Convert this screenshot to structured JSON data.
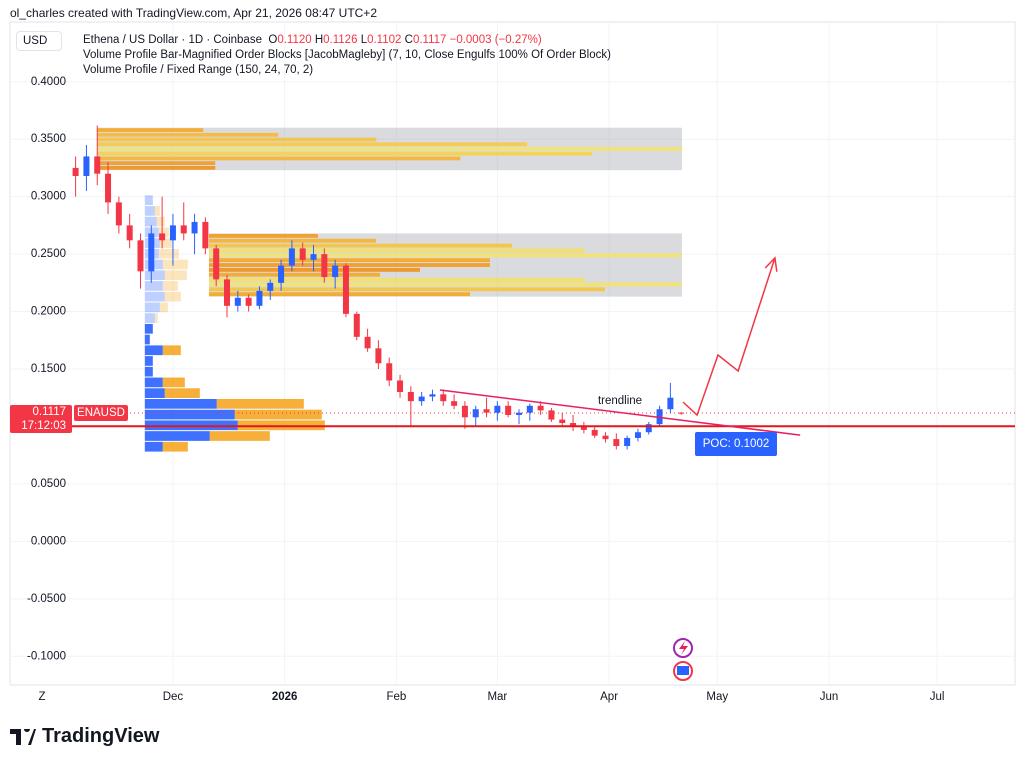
{
  "header": {
    "credit": "ol_charles created with TradingView.com, Apr 21, 2026 08:47 UTC+2",
    "currency": "USD",
    "symbol": "Ethena / US Dollar · 1D · Coinbase",
    "ohlc": [
      {
        "key": "O",
        "value": "0.1120"
      },
      {
        "key": "H",
        "value": "0.1126"
      },
      {
        "key": "L",
        "value": "0.1102"
      },
      {
        "key": "C",
        "value": "0.1117"
      }
    ],
    "change": "−0.0003 (−0.27%)",
    "indicators": [
      "Volume Profile Bar-Magnified Order Blocks [JacobMagleby] (7, 10, Close Engulfs 100% Of Order Block)",
      "Volume Profile / Fixed Range (150, 24, 70, 2)"
    ]
  },
  "footer": {
    "brand": "TradingView"
  },
  "chart_data": {
    "type": "candlestick",
    "xlim": [
      -45.2,
      233.6
    ],
    "ylim": [
      -0.125,
      0.452
    ],
    "xticks": [
      {
        "value": 0,
        "label": "Dec"
      },
      {
        "value": 31,
        "label": "2026"
      },
      {
        "value": 62,
        "label": "Feb"
      },
      {
        "value": 90,
        "label": "Mar"
      },
      {
        "value": 121,
        "label": "Apr"
      },
      {
        "value": 151,
        "label": "May"
      },
      {
        "value": 182,
        "label": "Jun"
      },
      {
        "value": 212,
        "label": "Jul"
      }
    ],
    "yticks": [
      {
        "value": 0.4,
        "label": "0.4000"
      },
      {
        "value": 0.35,
        "label": "0.3500"
      },
      {
        "value": 0.3,
        "label": "0.3000"
      },
      {
        "value": 0.25,
        "label": "0.2500"
      },
      {
        "value": 0.2,
        "label": "0.2000"
      },
      {
        "value": 0.15,
        "label": "0.1500"
      },
      {
        "value": 0.1,
        "label": "0.1000"
      },
      {
        "value": 0.05,
        "label": "0.0500"
      },
      {
        "value": 0,
        "label": "0.0000"
      },
      {
        "value": -0.05,
        "label": "-0.0500"
      },
      {
        "value": -0.1,
        "label": "-0.1000"
      }
    ],
    "grid": true,
    "timezone_button": "Z",
    "up_color": "#2962ff",
    "down_color": "#f23645",
    "candles": {
      "x": [
        -27,
        -24,
        -21,
        -18,
        -15,
        -12,
        -9,
        -6,
        -3,
        0,
        3,
        6,
        9,
        12,
        15,
        18,
        21,
        24,
        27,
        30,
        33,
        36,
        39,
        42,
        45,
        48,
        51,
        54,
        57,
        60,
        63,
        66,
        69,
        72,
        75,
        78,
        81,
        84,
        87,
        90,
        93,
        96,
        99,
        102,
        105,
        108,
        111,
        114,
        117,
        120,
        123,
        126,
        129,
        132,
        135,
        138,
        141
      ],
      "open": [
        0.325,
        0.318,
        0.335,
        0.32,
        0.295,
        0.275,
        0.262,
        0.235,
        0.268,
        0.262,
        0.275,
        0.268,
        0.278,
        0.255,
        0.228,
        0.205,
        0.212,
        0.205,
        0.218,
        0.225,
        0.24,
        0.255,
        0.245,
        0.25,
        0.23,
        0.24,
        0.198,
        0.178,
        0.168,
        0.155,
        0.14,
        0.13,
        0.122,
        0.126,
        0.128,
        0.122,
        0.118,
        0.108,
        0.115,
        0.112,
        0.118,
        0.11,
        0.112,
        0.118,
        0.114,
        0.106,
        0.103,
        0.1,
        0.097,
        0.092,
        0.089,
        0.083,
        0.09,
        0.095,
        0.102,
        0.115,
        0.112
      ],
      "high": [
        0.335,
        0.345,
        0.362,
        0.33,
        0.3,
        0.285,
        0.268,
        0.275,
        0.3,
        0.285,
        0.295,
        0.285,
        0.282,
        0.258,
        0.232,
        0.218,
        0.215,
        0.222,
        0.228,
        0.245,
        0.262,
        0.26,
        0.258,
        0.255,
        0.245,
        0.242,
        0.2,
        0.185,
        0.175,
        0.16,
        0.145,
        0.135,
        0.13,
        0.132,
        0.132,
        0.128,
        0.122,
        0.118,
        0.125,
        0.122,
        0.122,
        0.115,
        0.12,
        0.122,
        0.116,
        0.112,
        0.11,
        0.104,
        0.1,
        0.095,
        0.094,
        0.092,
        0.098,
        0.104,
        0.118,
        0.138,
        0.1126
      ],
      "low": [
        0.3,
        0.305,
        0.31,
        0.285,
        0.268,
        0.255,
        0.22,
        0.225,
        0.255,
        0.24,
        0.262,
        0.25,
        0.25,
        0.222,
        0.195,
        0.2,
        0.2,
        0.202,
        0.21,
        0.218,
        0.235,
        0.24,
        0.235,
        0.225,
        0.22,
        0.195,
        0.175,
        0.165,
        0.15,
        0.135,
        0.125,
        0.1,
        0.118,
        0.122,
        0.118,
        0.115,
        0.098,
        0.1,
        0.108,
        0.105,
        0.108,
        0.102,
        0.105,
        0.11,
        0.104,
        0.1,
        0.096,
        0.094,
        0.09,
        0.086,
        0.08,
        0.08,
        0.087,
        0.093,
        0.1,
        0.112,
        0.1102
      ],
      "close": [
        0.318,
        0.335,
        0.32,
        0.295,
        0.275,
        0.262,
        0.235,
        0.268,
        0.262,
        0.275,
        0.268,
        0.278,
        0.255,
        0.228,
        0.205,
        0.212,
        0.205,
        0.218,
        0.225,
        0.24,
        0.255,
        0.245,
        0.25,
        0.23,
        0.24,
        0.198,
        0.178,
        0.168,
        0.155,
        0.14,
        0.13,
        0.122,
        0.126,
        0.128,
        0.122,
        0.118,
        0.108,
        0.115,
        0.112,
        0.118,
        0.11,
        0.112,
        0.118,
        0.114,
        0.106,
        0.103,
        0.1,
        0.097,
        0.092,
        0.089,
        0.083,
        0.09,
        0.095,
        0.102,
        0.115,
        0.125,
        0.1117
      ]
    },
    "last_price": 0.1117,
    "last_price_label": "0.1117",
    "countdown": "17:12:03",
    "ticker": "ENAUSD",
    "poc": 0.1002,
    "poc_label": "POC: 0.1002",
    "order_blocks": [
      {
        "start": -21,
        "end": 141.2,
        "top": 0.36,
        "bottom": 0.323,
        "levels": [
          106,
          181,
          279,
          430,
          585,
          495,
          363,
          118,
          118
        ],
        "colors": [
          "#f5a623",
          "#f7b733",
          "#f7c23f",
          "#f6c945",
          "#f3e36a",
          "#f5d24a",
          "#f5b330",
          "#f39a1e",
          "#f0901a"
        ]
      },
      {
        "start": 10,
        "end": 141.2,
        "top": 0.268,
        "bottom": 0.213,
        "levels": [
          109,
          167,
          303,
          376,
          473,
          281,
          281,
          211,
          171,
          376,
          473,
          396,
          261
        ],
        "colors": [
          "#f39a1e",
          "#f5b330",
          "#f5c43e",
          "#f3df66",
          "#f3e36a",
          "#f5a623",
          "#f39a1e",
          "#f0901a",
          "#f5a623",
          "#f3df66",
          "#f3e36a",
          "#f5c43e",
          "#f5a623"
        ]
      }
    ],
    "volume_profile": {
      "start": -7.8,
      "price_range": [
        0.0777,
        0.3016
      ],
      "value_area_high": 0.185,
      "up": [
        8,
        10,
        12,
        14,
        15,
        14,
        18,
        20,
        18,
        20,
        15,
        10,
        8,
        5,
        18,
        8,
        8,
        18,
        20,
        72,
        90,
        93,
        65,
        18
      ],
      "down": [
        0,
        5,
        8,
        10,
        12,
        20,
        25,
        22,
        15,
        16,
        8,
        3,
        0,
        0,
        18,
        0,
        0,
        22,
        35,
        87,
        87,
        87,
        60,
        25
      ],
      "up_color": "#2962ff",
      "down_color": "#f5a623"
    },
    "trendline": {
      "label": "trendline",
      "x": [
        74.1,
        174
      ],
      "y": [
        0.1317,
        0.0925
      ]
    },
    "projection": {
      "x": [
        141.5,
        145.4,
        151.2,
        156.8,
        167
      ],
      "y": [
        0.1213,
        0.1099,
        0.1622,
        0.1483,
        0.2467
      ]
    }
  }
}
